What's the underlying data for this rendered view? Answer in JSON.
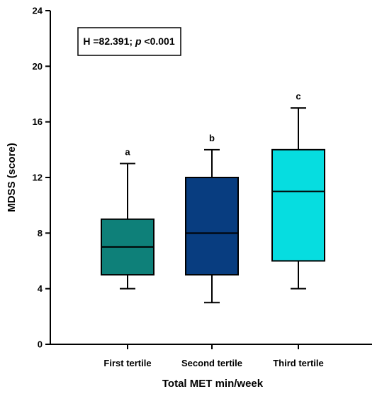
{
  "chart_data": {
    "type": "box",
    "categories": [
      "First tertile",
      "Second tertile",
      "Third tertile"
    ],
    "boxes": [
      {
        "category": "First tertile",
        "min": 4,
        "q1": 5,
        "median": 7,
        "q3": 9,
        "max": 13,
        "color": "#0e8079",
        "sig": "a"
      },
      {
        "category": "Second tertile",
        "min": 3,
        "q1": 5,
        "median": 8,
        "q3": 12,
        "max": 14,
        "color": "#083d80",
        "sig": "b"
      },
      {
        "category": "Third tertile",
        "min": 4,
        "q1": 6,
        "median": 11,
        "q3": 14,
        "max": 17,
        "color": "#06dde0",
        "sig": "c"
      }
    ],
    "xlabel": "Total MET min/week",
    "ylabel": "MDSS (score)",
    "ylim": [
      0,
      24
    ],
    "yticks": [
      0,
      4,
      8,
      12,
      16,
      20,
      24
    ],
    "grid": false,
    "annotation": {
      "stat": "H =82.391; ",
      "p_symbol": "p",
      "p_rest": " <0.001"
    }
  }
}
